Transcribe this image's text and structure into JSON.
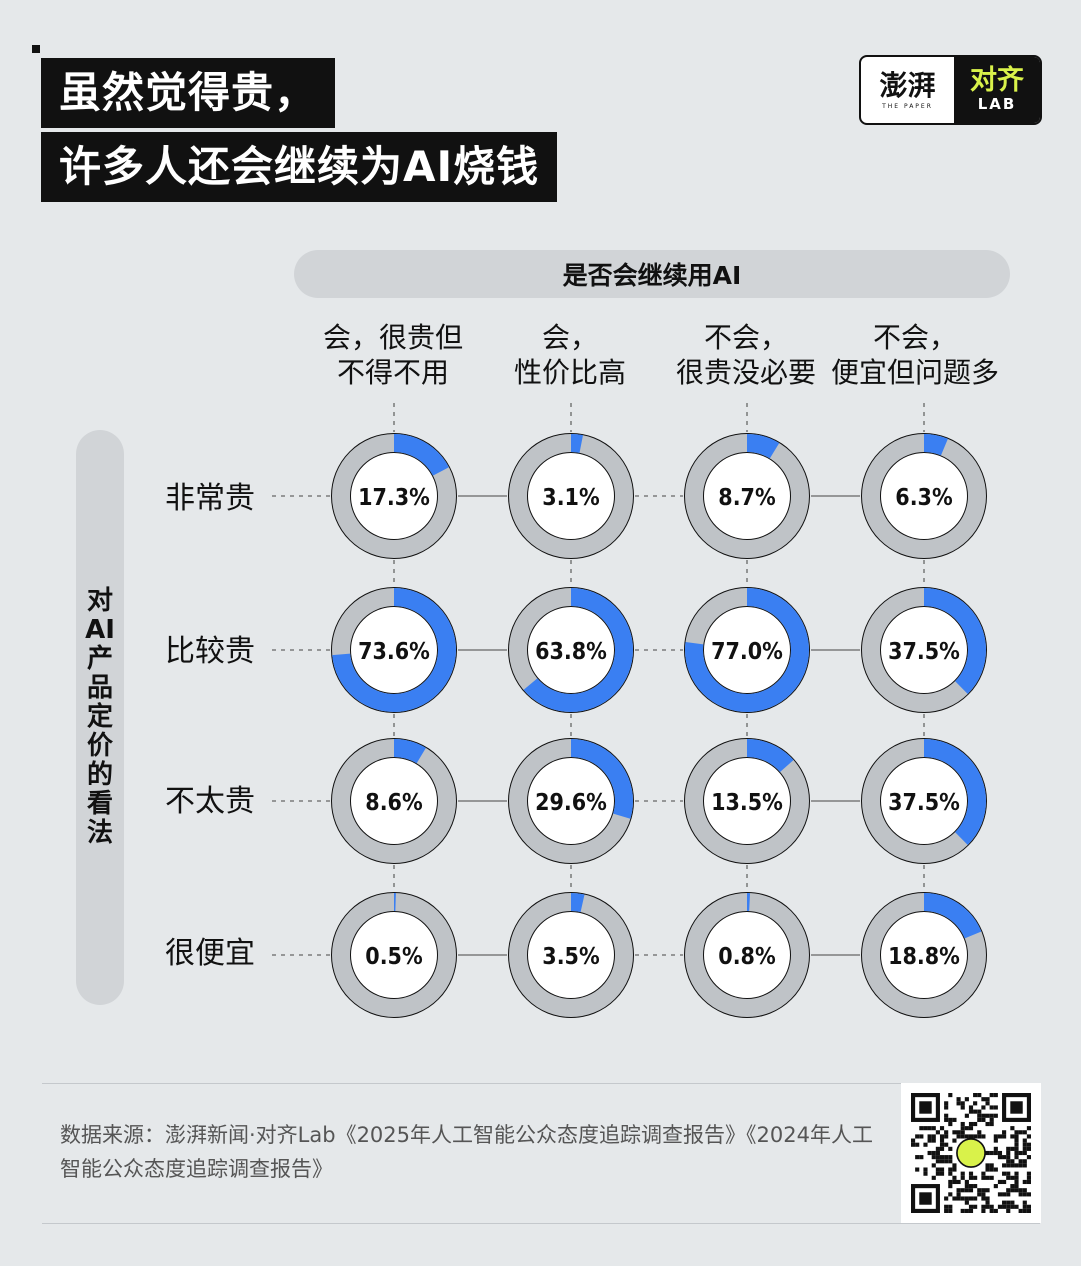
{
  "title": {
    "line1": "虽然觉得贵，",
    "line2": "许多人还会继续为AI烧钱"
  },
  "logo": {
    "left_text": "澎湃",
    "left_subtext": "THE PAPER",
    "right_text": "对齐",
    "right_subtext": "LAB"
  },
  "colors": {
    "background": "#e5e8ea",
    "accent_blue": "#3a7ff2",
    "ring_gray": "#bfc3c7",
    "dark": "#111111"
  },
  "chart_data": {
    "type": "donut-grid",
    "column_title": "是否会继续用AI",
    "row_title": "对AI产品定价的看法",
    "columns": [
      {
        "line1": "会，很贵但",
        "line2": "不得不用"
      },
      {
        "line1": "会，",
        "line2": "性价比高"
      },
      {
        "line1": "不会，",
        "line2": "很贵没必要"
      },
      {
        "line1": "不会，",
        "line2": "便宜但问题多"
      }
    ],
    "rows": [
      "非常贵",
      "比较贵",
      "不太贵",
      "很便宜"
    ],
    "values": [
      [
        17.3,
        3.1,
        8.7,
        6.3
      ],
      [
        73.6,
        63.8,
        77.0,
        37.5
      ],
      [
        8.6,
        29.6,
        13.5,
        37.5
      ],
      [
        0.5,
        3.5,
        0.8,
        18.8
      ]
    ],
    "labels": [
      [
        "17.3%",
        "3.1%",
        "8.7%",
        "6.3%"
      ],
      [
        "73.6%",
        "63.8%",
        "77.0%",
        "37.5%"
      ],
      [
        "8.6%",
        "29.6%",
        "13.5%",
        "37.5%"
      ],
      [
        "0.5%",
        "3.5%",
        "0.8%",
        "18.8%"
      ]
    ],
    "unit": "%"
  },
  "footer": {
    "source": "数据来源：澎湃新闻·对齐Lab《2025年人工智能公众态度追踪调查报告》《2024年人工智能公众态度追踪调查报告》"
  }
}
